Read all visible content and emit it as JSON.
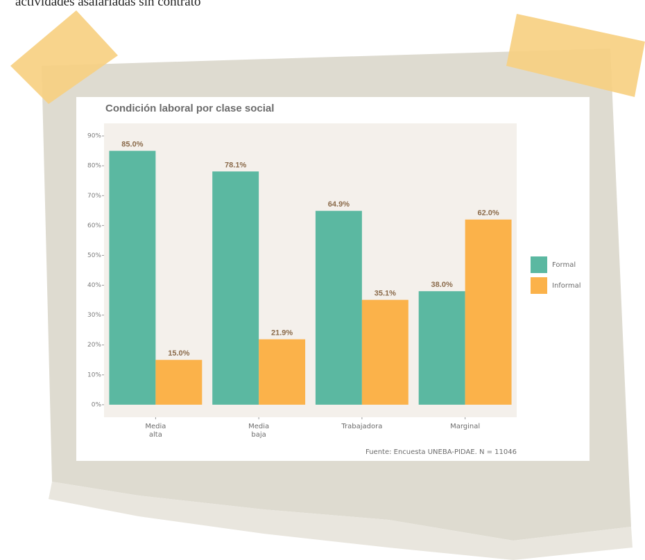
{
  "header": {
    "text": "actividades asalariadas sin contrato"
  },
  "chart_data": {
    "type": "bar",
    "title": "Condición laboral por clase social",
    "categories": [
      "Media\nalta",
      "Media\nbaja",
      "Trabajadora",
      "Marginal"
    ],
    "series": [
      {
        "name": "Formal",
        "color": "#5bb8a1",
        "values": [
          85.0,
          78.1,
          64.9,
          38.0
        ],
        "value_labels": [
          "85.0%",
          "78.1%",
          "64.9%",
          "38.0%"
        ]
      },
      {
        "name": "Informal",
        "color": "#fbb24a",
        "values": [
          15.0,
          21.9,
          35.1,
          62.0
        ],
        "value_labels": [
          "15.0%",
          "21.9%",
          "35.1%",
          "62.0%"
        ]
      }
    ],
    "ylim": [
      -4.2,
      94.2
    ],
    "yticks": [
      {
        "value": 0,
        "label": "0%"
      },
      {
        "value": 10,
        "label": "10%"
      },
      {
        "value": 20,
        "label": "20%"
      },
      {
        "value": 30,
        "label": "30%"
      },
      {
        "value": 40,
        "label": "40%"
      },
      {
        "value": 50,
        "label": "50%"
      },
      {
        "value": 60,
        "label": "60%"
      },
      {
        "value": 70,
        "label": "70%"
      },
      {
        "value": 80,
        "label": "80%"
      },
      {
        "value": 90,
        "label": "90%"
      }
    ],
    "grid": false,
    "legend": "right",
    "caption": "Fuente: Encuesta UNEBA-PIDAE. N = 11046"
  }
}
